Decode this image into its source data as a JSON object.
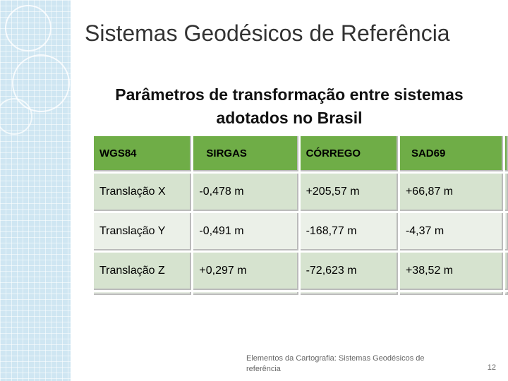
{
  "title": "Sistemas Geodésicos de Referência",
  "subtitle": "Parâmetros de transformação entre sistemas adotados no Brasil",
  "table": {
    "header": [
      "WGS84",
      "SIRGAS",
      "CÓRREGO",
      "SAD69"
    ],
    "rows": [
      [
        "Translação X",
        "-0,478 m",
        "+205,57 m",
        "+66,87 m"
      ],
      [
        "Translação Y",
        "-0,491 m",
        "-168,77 m",
        "-4,37 m"
      ],
      [
        "Translação Z",
        "+0,297 m",
        "-72,623 m",
        "+38,52 m"
      ]
    ]
  },
  "footer": {
    "text": "Elementos da Cartografia: Sistemas Geodésicos de referência",
    "page": "12"
  }
}
